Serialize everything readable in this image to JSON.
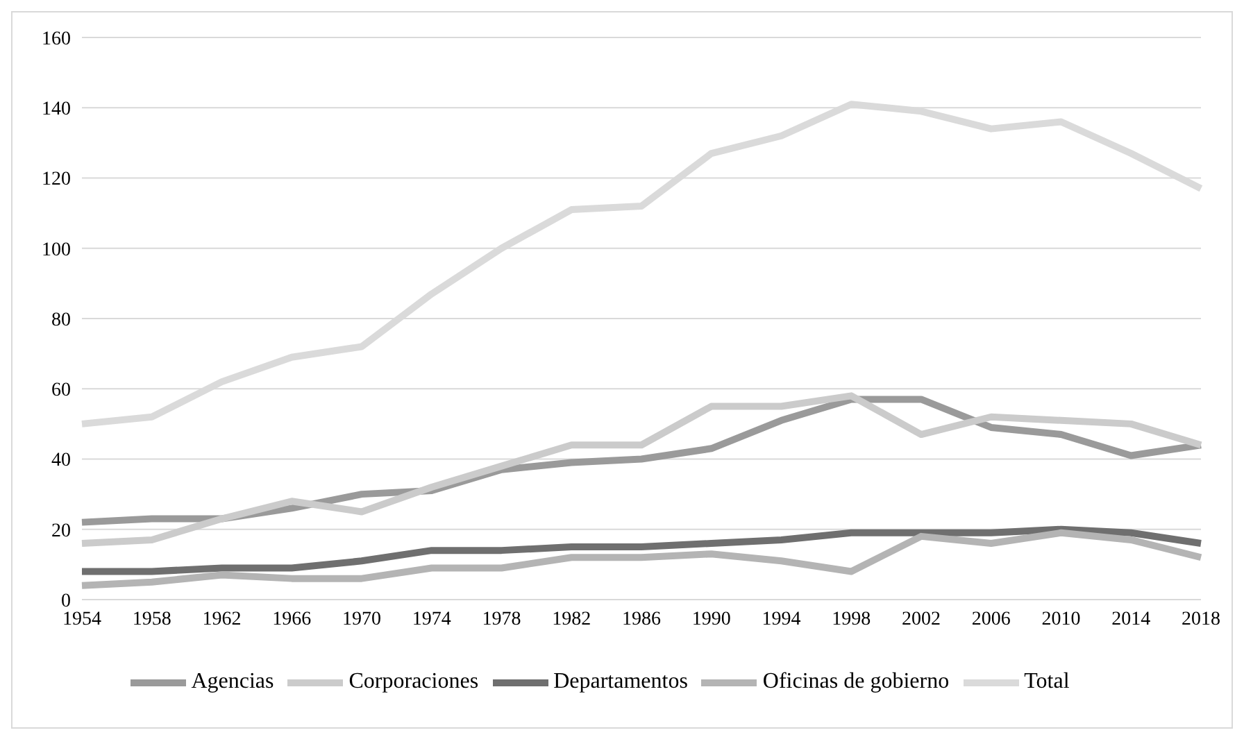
{
  "chart_data": {
    "type": "line",
    "categories": [
      "1954",
      "1958",
      "1962",
      "1966",
      "1970",
      "1974",
      "1978",
      "1982",
      "1986",
      "1990",
      "1994",
      "1998",
      "2002",
      "2006",
      "2010",
      "2014",
      "2018"
    ],
    "series": [
      {
        "name": "Departamentos",
        "color": "#6f6f6f",
        "values": [
          8,
          8,
          9,
          9,
          11,
          14,
          14,
          15,
          15,
          16,
          17,
          19,
          19,
          19,
          20,
          19,
          16
        ]
      },
      {
        "name": "Agencias",
        "color": "#9a9a9a",
        "values": [
          22,
          23,
          23,
          26,
          30,
          31,
          37,
          39,
          40,
          43,
          51,
          57,
          57,
          49,
          47,
          41,
          44
        ]
      },
      {
        "name": "Oficinas de gobierno",
        "color": "#b4b4b4",
        "values": [
          4,
          5,
          7,
          6,
          6,
          9,
          9,
          12,
          12,
          13,
          11,
          8,
          18,
          16,
          19,
          17,
          12
        ]
      },
      {
        "name": "Corporaciones",
        "color": "#cbcbcb",
        "values": [
          16,
          17,
          23,
          28,
          25,
          32,
          38,
          44,
          44,
          55,
          55,
          58,
          47,
          52,
          51,
          50,
          44
        ]
      },
      {
        "name": "Total",
        "color": "#dadada",
        "values": [
          50,
          52,
          62,
          69,
          72,
          87,
          100,
          111,
          112,
          127,
          132,
          141,
          139,
          134,
          136,
          127,
          117
        ]
      }
    ],
    "ylim": [
      0,
      160
    ],
    "yticks": [
      0,
      20,
      40,
      60,
      80,
      100,
      120,
      140,
      160
    ],
    "grid": "y",
    "legend": "bottom",
    "marker": "none",
    "line_style": "solid"
  }
}
